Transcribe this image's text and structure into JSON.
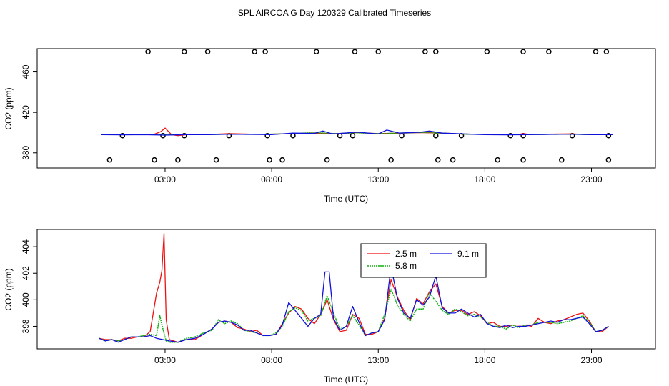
{
  "title": "SPL AIRCOA G  Day 120329  Calibrated Timeseries",
  "colors": {
    "s25": "#ee1111",
    "s58": "#10b010",
    "s91": "#1111dd"
  },
  "chart_data": [
    {
      "type": "line",
      "title": "",
      "xlabel": "Time (UTC)",
      "ylabel": "CO2 (ppm)",
      "xlim": [
        -3,
        26
      ],
      "ylim": [
        365,
        483
      ],
      "x_ticks": [
        3,
        8,
        13,
        18,
        23
      ],
      "x_tick_labels": [
        "03:00",
        "08:00",
        "13:00",
        "18:00",
        "23:00"
      ],
      "y_ticks": [
        380,
        420,
        460
      ],
      "y_tick_labels": [
        "380",
        "420",
        "460"
      ],
      "series": [
        {
          "name": "2.5 m",
          "color": "#ee1111",
          "x": [
            0,
            1,
            2,
            2.5,
            2.8,
            3.0,
            3.3,
            3.6,
            4,
            5,
            6,
            7,
            8,
            9,
            10,
            11,
            12,
            13,
            14,
            15,
            16,
            17,
            18,
            19,
            19.6,
            19.8,
            20,
            21,
            22,
            23,
            24
          ],
          "values": [
            398,
            398,
            398,
            398.5,
            401,
            404.5,
            398,
            397,
            398,
            398,
            399,
            398.5,
            398.5,
            399,
            399.5,
            399,
            400,
            399,
            399.5,
            400,
            399.5,
            398.5,
            398.3,
            398.2,
            398.3,
            399,
            398.5,
            398.5,
            398.7,
            398,
            398
          ]
        },
        {
          "name": "5.8 m",
          "color": "#10b010",
          "x": [
            0,
            1,
            2,
            3,
            4,
            5,
            6,
            7,
            8,
            9,
            10,
            11,
            12,
            13,
            14,
            15,
            16,
            17,
            18,
            19,
            20,
            21,
            22,
            23,
            24
          ],
          "values": [
            398,
            398,
            398,
            398,
            398,
            398,
            398.5,
            398.3,
            398.5,
            399,
            400,
            399,
            399.8,
            399,
            399.5,
            400.2,
            399.5,
            398.5,
            398.2,
            398,
            398,
            398.3,
            398.4,
            398,
            398
          ]
        },
        {
          "name": "9.1 m",
          "color": "#1111dd",
          "x": [
            0,
            1,
            2,
            3,
            4,
            5,
            6,
            7,
            8,
            9,
            10,
            10.4,
            10.8,
            11,
            12,
            13,
            13.4,
            14,
            15,
            15.4,
            16,
            17,
            18,
            19,
            20,
            21,
            22,
            23,
            24
          ],
          "values": [
            398,
            397.8,
            398,
            397.5,
            398,
            398,
            398.4,
            398.2,
            398,
            399.5,
            399.2,
            401.5,
            399,
            398.8,
            400.5,
            398.6,
            402.5,
            399.5,
            400.5,
            401.5,
            399.5,
            398.7,
            398,
            397.8,
            398,
            398.2,
            398.5,
            398,
            398
          ]
        }
      ],
      "cal_points_high": {
        "x": [
          2.2,
          3.9,
          5.0,
          7.2,
          7.7,
          10.1,
          11.9,
          13.0,
          15.2,
          15.7,
          18.1,
          19.8,
          21.0,
          23.2,
          23.7
        ],
        "y": 480
      },
      "cal_points_mid": {
        "x": [
          1.0,
          2.9,
          3.9,
          6.0,
          7.8,
          9.0,
          11.2,
          11.8,
          14.1,
          15.7,
          16.9,
          19.2,
          19.8,
          22.1,
          23.8
        ],
        "y": 397
      },
      "cal_points_low": {
        "x": [
          0.4,
          2.5,
          3.6,
          5.4,
          7.9,
          8.5,
          10.6,
          13.6,
          15.8,
          16.5,
          18.6,
          19.8,
          21.6,
          23.8
        ],
        "y": 373
      }
    },
    {
      "type": "line",
      "title": "",
      "xlabel": "Time (UTC)",
      "ylabel": "CO2 (ppm)",
      "xlim": [
        -3,
        26
      ],
      "ylim": [
        396.3,
        405.3
      ],
      "x_ticks": [
        3,
        8,
        13,
        18,
        23
      ],
      "x_tick_labels": [
        "03:00",
        "08:00",
        "13:00",
        "18:00",
        "23:00"
      ],
      "y_ticks": [
        398,
        400,
        402,
        404
      ],
      "y_tick_labels": [
        "398",
        "400",
        "402",
        "404"
      ],
      "legend": {
        "position": "top-center",
        "entries": [
          "2.5 m",
          "5.8 m",
          "9.1 m"
        ]
      },
      "series": [
        {
          "name": "2.5 m",
          "color": "#ee1111",
          "x": [
            -0.1,
            0.2,
            0.5,
            0.8,
            1.1,
            1.4,
            1.7,
            2.0,
            2.3,
            2.6,
            2.75,
            2.85,
            2.95,
            3.05,
            3.2,
            3.6,
            4.0,
            4.4,
            4.8,
            5.2,
            5.5,
            5.8,
            6.1,
            6.4,
            6.7,
            7.0,
            7.3,
            7.6,
            7.9,
            8.2,
            8.5,
            8.8,
            9.1,
            9.4,
            9.7,
            10.0,
            10.3,
            10.6,
            10.9,
            11.2,
            11.5,
            11.8,
            12.1,
            12.4,
            12.7,
            13.0,
            13.3,
            13.6,
            13.9,
            14.2,
            14.5,
            14.8,
            15.1,
            15.4,
            15.7,
            16.0,
            16.3,
            16.6,
            16.9,
            17.2,
            17.5,
            17.8,
            18.1,
            18.4,
            18.7,
            19.0,
            19.3,
            19.6,
            19.9,
            20.2,
            20.5,
            20.8,
            21.1,
            21.4,
            21.7,
            22.0,
            22.3,
            22.6,
            22.9,
            23.2,
            23.5,
            23.8
          ],
          "values": [
            397.1,
            397,
            397,
            396.9,
            397.1,
            397.1,
            397.2,
            397.2,
            397.6,
            400.5,
            401.3,
            402.2,
            405.0,
            398.5,
            397,
            396.8,
            397,
            397,
            397.4,
            397.8,
            398.3,
            398.4,
            398.3,
            397.9,
            397.8,
            397.6,
            397.7,
            397.3,
            397.3,
            397.4,
            398.2,
            399.0,
            399.5,
            399.3,
            398.6,
            398.2,
            398.9,
            400.0,
            398.5,
            397.6,
            397.7,
            398.9,
            398.6,
            397.4,
            397.4,
            397.6,
            398.6,
            401.5,
            400.2,
            399.2,
            398.5,
            400.1,
            399.7,
            400.6,
            401.2,
            399.5,
            399.0,
            399.2,
            399.2,
            398.9,
            399.1,
            398.8,
            398.2,
            398.3,
            398.0,
            398.0,
            398.1,
            398.1,
            398.1,
            398.0,
            398.6,
            398.3,
            398.2,
            398.4,
            398.5,
            398.7,
            398.9,
            399.0,
            398.4,
            397.6,
            397.6,
            398.0
          ]
        },
        {
          "name": "5.8 m",
          "color": "#10b010",
          "x": [
            -0.1,
            0.2,
            0.5,
            0.8,
            1.1,
            1.4,
            1.7,
            2.0,
            2.3,
            2.6,
            2.75,
            2.9,
            3.05,
            3.2,
            3.6,
            4.0,
            4.4,
            4.8,
            5.2,
            5.5,
            5.8,
            6.1,
            6.4,
            6.7,
            7.0,
            7.3,
            7.6,
            7.9,
            8.2,
            8.5,
            8.8,
            9.1,
            9.4,
            9.7,
            10.0,
            10.3,
            10.6,
            10.9,
            11.2,
            11.5,
            11.8,
            12.1,
            12.4,
            12.7,
            13.0,
            13.3,
            13.6,
            13.9,
            14.2,
            14.5,
            14.8,
            15.1,
            15.4,
            15.7,
            16.0,
            16.3,
            16.6,
            16.9,
            17.2,
            17.5,
            17.8,
            18.1,
            18.4,
            18.7,
            19.0,
            19.3,
            19.6,
            19.9,
            20.2,
            20.5,
            20.8,
            21.1,
            21.4,
            21.7,
            22.0,
            22.3,
            22.6,
            22.9,
            23.2,
            23.5,
            23.8
          ],
          "values": [
            397.1,
            396.9,
            397,
            396.9,
            397,
            397.2,
            397.2,
            397.3,
            397.4,
            397.3,
            398.8,
            397.8,
            396.9,
            396.8,
            396.8,
            397.1,
            397.2,
            397.5,
            397.7,
            398.5,
            398.2,
            398.4,
            398.2,
            397.7,
            397.6,
            397.5,
            397.3,
            397.3,
            397.5,
            398.0,
            399.1,
            399.4,
            399.2,
            398.4,
            398.6,
            398.8,
            400.3,
            399.0,
            397.8,
            398.0,
            398.8,
            398.1,
            397.3,
            397.5,
            397.6,
            398.9,
            400.8,
            399.6,
            398.9,
            398.4,
            399.3,
            399.3,
            400.5,
            399.9,
            399.2,
            398.9,
            399.3,
            399.1,
            398.8,
            398.9,
            398.7,
            398.3,
            398.0,
            398.0,
            397.8,
            398.1,
            397.9,
            398.1,
            398.1,
            398.3,
            398.3,
            398.3,
            398.2,
            398.3,
            398.4,
            398.6,
            398.8,
            398.3,
            397.6,
            397.7,
            398.0
          ]
        },
        {
          "name": "9.1 m",
          "color": "#1111dd",
          "x": [
            -0.1,
            0.2,
            0.5,
            0.8,
            1.1,
            1.4,
            1.7,
            2.0,
            2.3,
            2.6,
            2.9,
            3.2,
            3.6,
            4.0,
            4.4,
            4.8,
            5.2,
            5.5,
            5.8,
            6.1,
            6.4,
            6.7,
            7.0,
            7.3,
            7.6,
            7.9,
            8.2,
            8.5,
            8.8,
            9.1,
            9.4,
            9.7,
            10.0,
            10.3,
            10.5,
            10.7,
            10.9,
            11.2,
            11.5,
            11.8,
            12.1,
            12.4,
            12.7,
            13.0,
            13.3,
            13.6,
            13.9,
            14.2,
            14.5,
            14.8,
            15.1,
            15.4,
            15.7,
            16.0,
            16.3,
            16.6,
            16.9,
            17.2,
            17.5,
            17.8,
            18.1,
            18.4,
            18.7,
            19.0,
            19.3,
            19.6,
            19.9,
            20.2,
            20.5,
            20.8,
            21.1,
            21.4,
            21.7,
            22.0,
            22.3,
            22.6,
            22.9,
            23.2,
            23.5,
            23.8
          ],
          "values": [
            397.1,
            396.9,
            397,
            396.8,
            397,
            397.2,
            397.2,
            397.2,
            397.3,
            397.1,
            397.0,
            396.9,
            396.8,
            397.0,
            397.1,
            397.4,
            397.8,
            398.3,
            398.4,
            398.3,
            398.1,
            397.7,
            397.7,
            397.5,
            397.3,
            397.3,
            397.4,
            398.1,
            399.8,
            399.2,
            398.6,
            398.0,
            398.6,
            398.9,
            402.1,
            402.1,
            398.6,
            397.7,
            398.0,
            399.5,
            398.3,
            397.3,
            397.5,
            397.6,
            398.5,
            402.5,
            400.1,
            399.0,
            398.6,
            400.0,
            399.6,
            400.2,
            401.8,
            399.4,
            399.0,
            399.0,
            399.3,
            399.0,
            398.7,
            398.9,
            398.2,
            398.0,
            397.9,
            398.1,
            397.9,
            398.0,
            398.0,
            398.1,
            398.2,
            398.3,
            398.4,
            398.3,
            398.5,
            398.5,
            398.6,
            398.7,
            398.2,
            397.6,
            397.7,
            398.0
          ]
        }
      ]
    }
  ]
}
